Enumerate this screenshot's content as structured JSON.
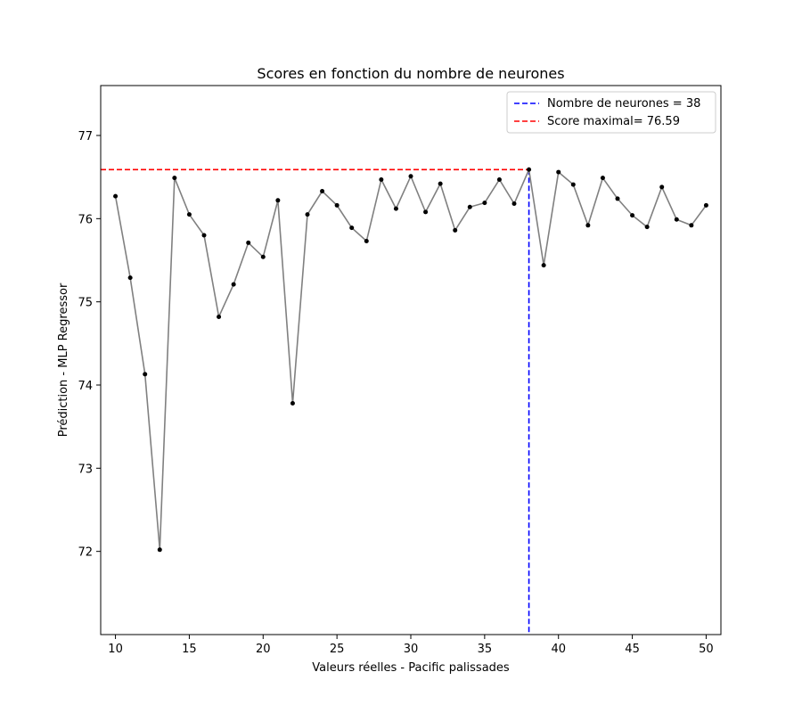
{
  "chart_data": {
    "type": "line",
    "title": "Scores en fonction du nombre de neurones",
    "xlabel": "Valeurs réelles - Pacific palissades",
    "ylabel": "Prédiction - MLP Regressor",
    "xlim": [
      9,
      51
    ],
    "ylim": [
      71.0,
      77.6
    ],
    "xticks": [
      10,
      15,
      20,
      25,
      30,
      35,
      40,
      45,
      50
    ],
    "yticks": [
      72,
      73,
      74,
      75,
      76,
      77
    ],
    "grid": false,
    "legend_placement": "top-right",
    "series": [
      {
        "x": [
          10,
          11,
          12,
          13,
          14,
          15,
          16,
          17,
          18,
          19,
          20,
          21,
          22,
          23,
          24,
          25,
          26,
          27,
          28,
          29,
          30,
          31,
          32,
          33,
          34,
          35,
          36,
          37,
          38,
          39,
          40,
          41,
          42,
          43,
          44,
          45,
          46,
          47,
          48,
          49,
          50
        ],
        "values": [
          76.27,
          75.29,
          74.13,
          72.02,
          76.49,
          76.05,
          75.8,
          74.82,
          75.21,
          75.71,
          75.54,
          76.22,
          73.78,
          76.05,
          76.33,
          76.16,
          75.89,
          75.73,
          76.47,
          76.12,
          76.51,
          76.08,
          76.42,
          75.86,
          76.14,
          76.19,
          76.47,
          76.18,
          76.59,
          75.44,
          76.56,
          76.41,
          75.92,
          76.49,
          76.24,
          76.04,
          75.9,
          76.38,
          75.99,
          75.92,
          76.16
        ],
        "line_color": "#808080",
        "marker_color": "#000000"
      }
    ],
    "reference_lines": [
      {
        "orientation": "vertical",
        "value": 38,
        "color": "#0000ff",
        "style": "dashed",
        "label": "Nombre de neurones = 38"
      },
      {
        "orientation": "horizontal",
        "value": 76.59,
        "x_range": [
          9,
          38
        ],
        "color": "#ff0000",
        "style": "dashed",
        "label": "Score maximal= 76.59"
      }
    ]
  }
}
